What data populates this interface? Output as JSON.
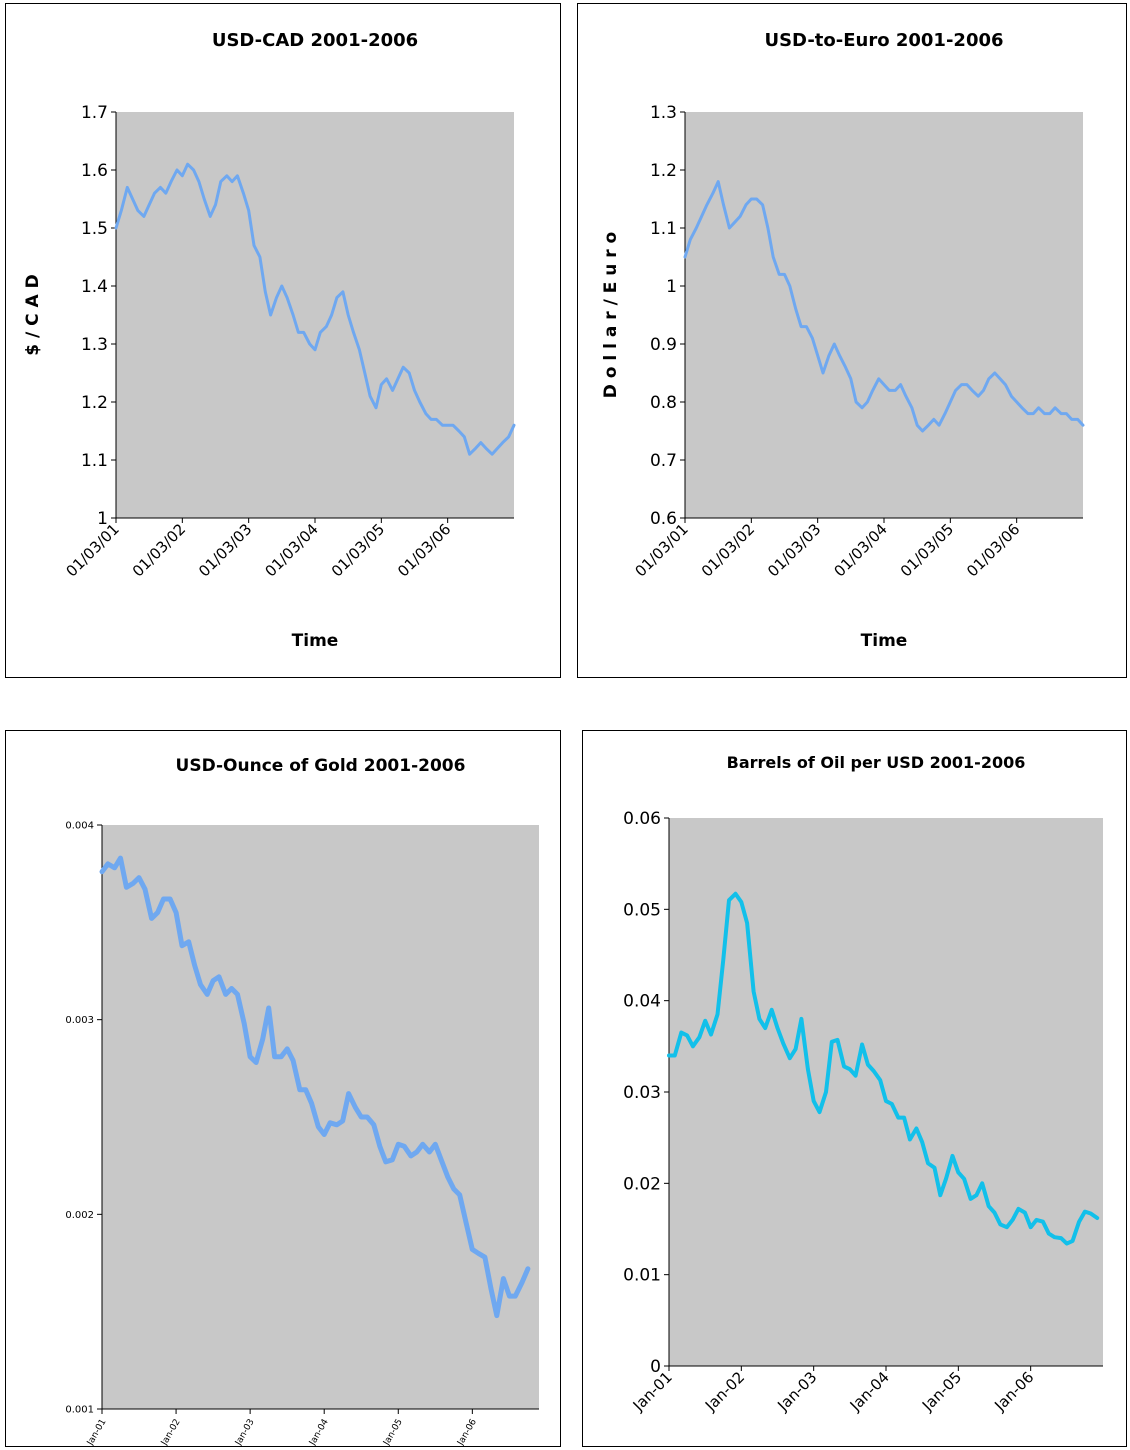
{
  "colors": {
    "line_blue": "#6fa8f0",
    "line_cyan": "#12c0ea",
    "plot_bg": "#c8c8c8",
    "border": "#000000"
  },
  "chart_data": [
    {
      "type": "line",
      "title": "USD-CAD 2001-2006",
      "xlabel": "Time",
      "ylabel": "$ / C A D",
      "ylim": [
        1,
        1.7
      ],
      "yticks": [
        "1",
        "1.1",
        "1.2",
        "1.3",
        "1.4",
        "1.5",
        "1.6",
        "1.7"
      ],
      "xticks": [
        "01/03/01",
        "01/03/02",
        "01/03/03",
        "01/03/04",
        "01/03/05",
        "01/03/06"
      ],
      "x": [
        2001.0,
        2001.08,
        2001.17,
        2001.25,
        2001.33,
        2001.42,
        2001.5,
        2001.58,
        2001.67,
        2001.75,
        2001.83,
        2001.92,
        2002.0,
        2002.08,
        2002.17,
        2002.25,
        2002.33,
        2002.42,
        2002.5,
        2002.58,
        2002.67,
        2002.75,
        2002.83,
        2002.92,
        2003.0,
        2003.08,
        2003.17,
        2003.25,
        2003.33,
        2003.42,
        2003.5,
        2003.58,
        2003.67,
        2003.75,
        2003.83,
        2003.92,
        2004.0,
        2004.08,
        2004.17,
        2004.25,
        2004.33,
        2004.42,
        2004.5,
        2004.58,
        2004.67,
        2004.75,
        2004.83,
        2004.92,
        2005.0,
        2005.08,
        2005.17,
        2005.25,
        2005.33,
        2005.42,
        2005.5,
        2005.58,
        2005.67,
        2005.75,
        2005.83,
        2005.92,
        2006.0,
        2006.08,
        2006.17,
        2006.25,
        2006.33,
        2006.42,
        2006.5,
        2006.58,
        2006.67,
        2006.75,
        2006.83,
        2006.92,
        2007.0
      ],
      "series": [
        {
          "values": [
            1.5,
            1.53,
            1.57,
            1.55,
            1.53,
            1.52,
            1.54,
            1.56,
            1.57,
            1.56,
            1.58,
            1.6,
            1.59,
            1.61,
            1.6,
            1.58,
            1.55,
            1.52,
            1.54,
            1.58,
            1.59,
            1.58,
            1.59,
            1.56,
            1.53,
            1.47,
            1.45,
            1.39,
            1.35,
            1.38,
            1.4,
            1.38,
            1.35,
            1.32,
            1.32,
            1.3,
            1.29,
            1.32,
            1.33,
            1.35,
            1.38,
            1.39,
            1.35,
            1.32,
            1.29,
            1.25,
            1.21,
            1.19,
            1.23,
            1.24,
            1.22,
            1.24,
            1.26,
            1.25,
            1.22,
            1.2,
            1.18,
            1.17,
            1.17,
            1.16,
            1.16,
            1.16,
            1.15,
            1.14,
            1.11,
            1.12,
            1.13,
            1.12,
            1.11,
            1.12,
            1.13,
            1.14,
            1.16
          ]
        }
      ]
    },
    {
      "type": "line",
      "title": "USD-to-Euro 2001-2006",
      "xlabel": "Time",
      "ylabel": "D o l l a r / E u r o",
      "ylim": [
        0.6,
        1.3
      ],
      "yticks": [
        "0.6",
        "0.7",
        "0.8",
        "0.9",
        "1",
        "1.1",
        "1.2",
        "1.3"
      ],
      "xticks": [
        "01/03/01",
        "01/03/02",
        "01/03/03",
        "01/03/04",
        "01/03/05",
        "01/03/06"
      ],
      "x": [
        2001.0,
        2001.08,
        2001.17,
        2001.25,
        2001.33,
        2001.42,
        2001.5,
        2001.58,
        2001.67,
        2001.75,
        2001.83,
        2001.92,
        2002.0,
        2002.08,
        2002.17,
        2002.25,
        2002.33,
        2002.42,
        2002.5,
        2002.58,
        2002.67,
        2002.75,
        2002.83,
        2002.92,
        2003.0,
        2003.08,
        2003.17,
        2003.25,
        2003.33,
        2003.42,
        2003.5,
        2003.58,
        2003.67,
        2003.75,
        2003.83,
        2003.92,
        2004.0,
        2004.08,
        2004.17,
        2004.25,
        2004.33,
        2004.42,
        2004.5,
        2004.58,
        2004.67,
        2004.75,
        2004.83,
        2004.92,
        2005.0,
        2005.08,
        2005.17,
        2005.25,
        2005.33,
        2005.42,
        2005.5,
        2005.58,
        2005.67,
        2005.75,
        2005.83,
        2005.92,
        2006.0,
        2006.08,
        2006.17,
        2006.25,
        2006.33,
        2006.42,
        2006.5,
        2006.58,
        2006.67,
        2006.75,
        2006.83,
        2006.92,
        2007.0
      ],
      "series": [
        {
          "values": [
            1.05,
            1.08,
            1.1,
            1.12,
            1.14,
            1.16,
            1.18,
            1.14,
            1.1,
            1.11,
            1.12,
            1.14,
            1.15,
            1.15,
            1.14,
            1.1,
            1.05,
            1.02,
            1.02,
            1.0,
            0.96,
            0.93,
            0.93,
            0.91,
            0.88,
            0.85,
            0.88,
            0.9,
            0.88,
            0.86,
            0.84,
            0.8,
            0.79,
            0.8,
            0.82,
            0.84,
            0.83,
            0.82,
            0.82,
            0.83,
            0.81,
            0.79,
            0.76,
            0.75,
            0.76,
            0.77,
            0.76,
            0.78,
            0.8,
            0.82,
            0.83,
            0.83,
            0.82,
            0.81,
            0.82,
            0.84,
            0.85,
            0.84,
            0.83,
            0.81,
            0.8,
            0.79,
            0.78,
            0.78,
            0.79,
            0.78,
            0.78,
            0.79,
            0.78,
            0.78,
            0.77,
            0.77,
            0.76
          ]
        }
      ]
    },
    {
      "type": "line",
      "title": "USD-Ounce of Gold 2001-2006",
      "xlabel": "",
      "ylabel": "",
      "ylim": [
        0.001,
        0.004
      ],
      "yticks": [
        "0.001",
        "0.002",
        "0.003",
        "0.004"
      ],
      "xticks": [
        "Jan-01",
        "Jan-02",
        "Jan-03",
        "Jan-04",
        "Jan-05",
        "Jan-06"
      ],
      "x": [
        2001.0,
        2001.08,
        2001.17,
        2001.25,
        2001.33,
        2001.42,
        2001.5,
        2001.58,
        2001.67,
        2001.75,
        2001.83,
        2001.92,
        2002.0,
        2002.08,
        2002.17,
        2002.25,
        2002.33,
        2002.42,
        2002.5,
        2002.58,
        2002.67,
        2002.75,
        2002.83,
        2002.92,
        2003.0,
        2003.08,
        2003.17,
        2003.25,
        2003.33,
        2003.42,
        2003.5,
        2003.58,
        2003.67,
        2003.75,
        2003.83,
        2003.92,
        2004.0,
        2004.08,
        2004.17,
        2004.25,
        2004.33,
        2004.42,
        2004.5,
        2004.58,
        2004.67,
        2004.75,
        2004.83,
        2004.92,
        2005.0,
        2005.08,
        2005.17,
        2005.25,
        2005.33,
        2005.42,
        2005.5,
        2005.58,
        2005.67,
        2005.75,
        2005.83,
        2005.92,
        2006.0,
        2006.08,
        2006.17,
        2006.25,
        2006.33,
        2006.42,
        2006.5,
        2006.58,
        2006.67,
        2006.75
      ],
      "series": [
        {
          "values": [
            0.00376,
            0.0038,
            0.00378,
            0.00383,
            0.00368,
            0.0037,
            0.00373,
            0.00367,
            0.00352,
            0.00355,
            0.00362,
            0.00362,
            0.00355,
            0.00338,
            0.0034,
            0.00328,
            0.00318,
            0.00313,
            0.0032,
            0.00322,
            0.00313,
            0.00316,
            0.00313,
            0.00298,
            0.00281,
            0.00278,
            0.0029,
            0.00306,
            0.00281,
            0.00281,
            0.00285,
            0.00279,
            0.00264,
            0.00264,
            0.00257,
            0.00245,
            0.00241,
            0.00247,
            0.00246,
            0.00248,
            0.00262,
            0.00255,
            0.0025,
            0.0025,
            0.00246,
            0.00235,
            0.00227,
            0.00228,
            0.00236,
            0.00235,
            0.0023,
            0.00232,
            0.00236,
            0.00232,
            0.00236,
            0.00228,
            0.00219,
            0.00213,
            0.0021,
            0.00195,
            0.00182,
            0.0018,
            0.00178,
            0.00162,
            0.00148,
            0.00167,
            0.00158,
            0.00158,
            0.00165,
            0.00172
          ]
        }
      ]
    },
    {
      "type": "line",
      "title": "Barrels of Oil per USD 2001-2006",
      "xlabel": "",
      "ylabel": "",
      "ylim": [
        0,
        0.06
      ],
      "yticks": [
        "0",
        "0.01",
        "0.02",
        "0.03",
        "0.04",
        "0.05",
        "0.06"
      ],
      "xticks": [
        "Jan-01",
        "Jan-02",
        "Jan-03",
        "Jan-04",
        "Jan-05",
        "Jan-06"
      ],
      "x": [
        2001.0,
        2001.08,
        2001.17,
        2001.25,
        2001.33,
        2001.42,
        2001.5,
        2001.58,
        2001.67,
        2001.75,
        2001.83,
        2001.92,
        2002.0,
        2002.08,
        2002.17,
        2002.25,
        2002.33,
        2002.42,
        2002.5,
        2002.58,
        2002.67,
        2002.75,
        2002.83,
        2002.92,
        2003.0,
        2003.08,
        2003.17,
        2003.25,
        2003.33,
        2003.42,
        2003.5,
        2003.58,
        2003.67,
        2003.75,
        2003.83,
        2003.92,
        2004.0,
        2004.08,
        2004.17,
        2004.25,
        2004.33,
        2004.42,
        2004.5,
        2004.58,
        2004.67,
        2004.75,
        2004.83,
        2004.92,
        2005.0,
        2005.08,
        2005.17,
        2005.25,
        2005.33,
        2005.42,
        2005.5,
        2005.58,
        2005.67,
        2005.75,
        2005.83,
        2005.92,
        2006.0,
        2006.08,
        2006.17,
        2006.25,
        2006.33,
        2006.42,
        2006.5,
        2006.58,
        2006.67,
        2006.75,
        2006.83,
        2006.92
      ],
      "series": [
        {
          "values": [
            0.034,
            0.034,
            0.0365,
            0.0362,
            0.035,
            0.036,
            0.0378,
            0.0363,
            0.0385,
            0.0445,
            0.051,
            0.0517,
            0.0508,
            0.0485,
            0.041,
            0.038,
            0.037,
            0.039,
            0.037,
            0.0353,
            0.0337,
            0.0347,
            0.038,
            0.0325,
            0.029,
            0.0278,
            0.03,
            0.0355,
            0.0357,
            0.0328,
            0.0325,
            0.0318,
            0.0352,
            0.033,
            0.0323,
            0.0313,
            0.029,
            0.0287,
            0.0272,
            0.0272,
            0.0248,
            0.026,
            0.0245,
            0.0222,
            0.0217,
            0.0187,
            0.0205,
            0.023,
            0.0212,
            0.0205,
            0.0183,
            0.0187,
            0.02,
            0.0175,
            0.0168,
            0.0155,
            0.0152,
            0.016,
            0.0172,
            0.0168,
            0.0152,
            0.016,
            0.0158,
            0.0145,
            0.0141,
            0.014,
            0.0134,
            0.0137,
            0.0158,
            0.0169,
            0.0167,
            0.0162
          ]
        }
      ]
    }
  ]
}
